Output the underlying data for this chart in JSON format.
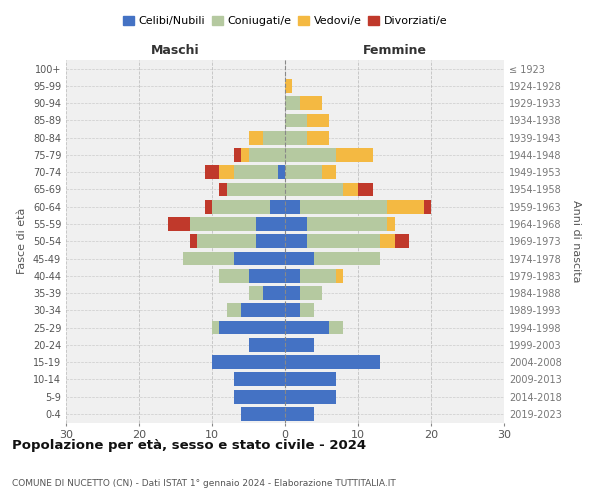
{
  "age_groups": [
    "0-4",
    "5-9",
    "10-14",
    "15-19",
    "20-24",
    "25-29",
    "30-34",
    "35-39",
    "40-44",
    "45-49",
    "50-54",
    "55-59",
    "60-64",
    "65-69",
    "70-74",
    "75-79",
    "80-84",
    "85-89",
    "90-94",
    "95-99",
    "100+"
  ],
  "birth_years": [
    "2019-2023",
    "2014-2018",
    "2009-2013",
    "2004-2008",
    "1999-2003",
    "1994-1998",
    "1989-1993",
    "1984-1988",
    "1979-1983",
    "1974-1978",
    "1969-1973",
    "1964-1968",
    "1959-1963",
    "1954-1958",
    "1949-1953",
    "1944-1948",
    "1939-1943",
    "1934-1938",
    "1929-1933",
    "1924-1928",
    "≤ 1923"
  ],
  "maschi": {
    "celibi": [
      6,
      7,
      7,
      10,
      5,
      9,
      6,
      3,
      5,
      7,
      4,
      4,
      2,
      0,
      1,
      0,
      0,
      0,
      0,
      0,
      0
    ],
    "coniugati": [
      0,
      0,
      0,
      0,
      0,
      1,
      2,
      2,
      4,
      7,
      8,
      9,
      8,
      8,
      6,
      5,
      3,
      0,
      0,
      0,
      0
    ],
    "vedovi": [
      0,
      0,
      0,
      0,
      0,
      0,
      0,
      0,
      0,
      0,
      0,
      0,
      0,
      0,
      2,
      1,
      2,
      0,
      0,
      0,
      0
    ],
    "divorziati": [
      0,
      0,
      0,
      0,
      0,
      0,
      0,
      0,
      0,
      0,
      1,
      3,
      1,
      1,
      2,
      1,
      0,
      0,
      0,
      0,
      0
    ]
  },
  "femmine": {
    "nubili": [
      4,
      7,
      7,
      13,
      4,
      6,
      2,
      2,
      2,
      4,
      3,
      3,
      2,
      0,
      0,
      0,
      0,
      0,
      0,
      0,
      0
    ],
    "coniugate": [
      0,
      0,
      0,
      0,
      0,
      2,
      2,
      3,
      5,
      9,
      10,
      11,
      12,
      8,
      5,
      7,
      3,
      3,
      2,
      0,
      0
    ],
    "vedove": [
      0,
      0,
      0,
      0,
      0,
      0,
      0,
      0,
      1,
      0,
      2,
      1,
      5,
      2,
      2,
      5,
      3,
      3,
      3,
      1,
      0
    ],
    "divorziate": [
      0,
      0,
      0,
      0,
      0,
      0,
      0,
      0,
      0,
      0,
      2,
      0,
      1,
      2,
      0,
      0,
      0,
      0,
      0,
      0,
      0
    ]
  },
  "colors": {
    "celibi_nubili": "#4472C4",
    "coniugati": "#B5C9A0",
    "vedovi": "#F4B942",
    "divorziati": "#C0392B"
  },
  "xlim": 30,
  "title": "Popolazione per età, sesso e stato civile - 2024",
  "subtitle": "COMUNE DI NUCETTO (CN) - Dati ISTAT 1° gennaio 2024 - Elaborazione TUTTITALIA.IT",
  "ylabel_left": "Fasce di età",
  "ylabel_right": "Anni di nascita",
  "xlabel_left": "Maschi",
  "xlabel_right": "Femmine"
}
